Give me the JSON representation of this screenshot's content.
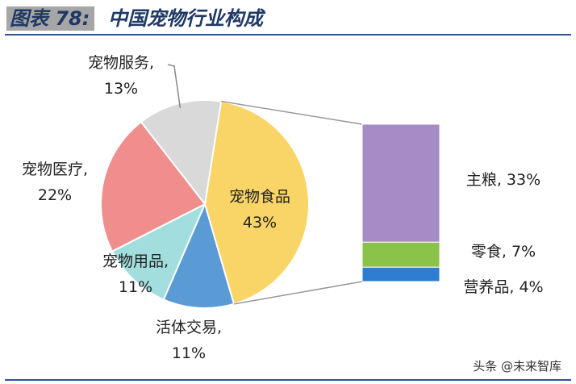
{
  "header": {
    "figure_label": "图表 78:",
    "title": "中国宠物行业构成"
  },
  "chart_data": [
    {
      "type": "pie",
      "slices": [
        {
          "name": "宠物食品",
          "value": 43,
          "label": "43%",
          "color": "#f9d466"
        },
        {
          "name": "活体交易",
          "value": 11,
          "label": "11%",
          "color": "#5b9bd5"
        },
        {
          "name": "宠物用品",
          "value": 11,
          "label": "11%",
          "color": "#a2dede"
        },
        {
          "name": "宠物医疗",
          "value": 22,
          "label": "22%",
          "color": "#f08e8e"
        },
        {
          "name": "宠物服务",
          "value": 13,
          "label": "13%",
          "color": "#d9d9d9"
        }
      ]
    },
    {
      "type": "bar",
      "stacked": true,
      "parent": "宠物食品",
      "segments": [
        {
          "name": "主粮",
          "value": 33,
          "label": "主粮, 33%",
          "color": "#a68bc7"
        },
        {
          "name": "零食",
          "value": 7,
          "label": "零食, 7%",
          "color": "#8bc34a"
        },
        {
          "name": "营养品",
          "value": 4,
          "label": "营养品, 4%",
          "color": "#2f7dd1"
        }
      ]
    }
  ],
  "watermark": "头条 @未来智库"
}
